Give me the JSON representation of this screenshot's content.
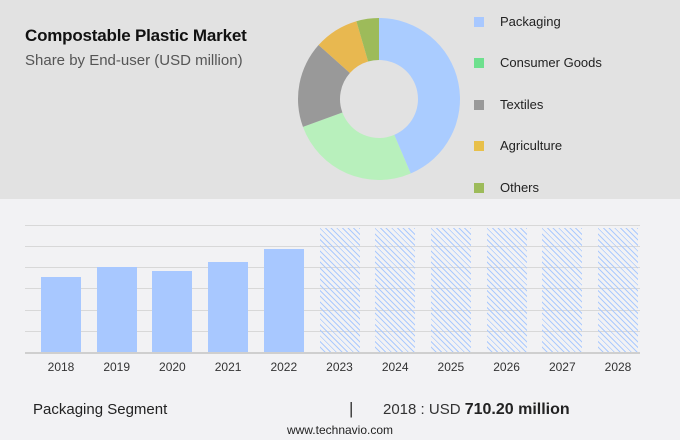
{
  "header": {
    "title": "Compostable Plastic Market",
    "subtitle": "Share by End-user (USD million)"
  },
  "legend": [
    {
      "label": "Packaging",
      "color": "#a8c8ff"
    },
    {
      "label": "Consumer Goods",
      "color": "#6ee08e"
    },
    {
      "label": "Textiles",
      "color": "#999999"
    },
    {
      "label": "Agriculture",
      "color": "#e8c04a"
    },
    {
      "label": "Others",
      "color": "#9dbb5a"
    }
  ],
  "footer": {
    "segment": "Packaging Segment",
    "separator": "|",
    "year_prefix": "2018 : USD ",
    "value": "710.20 million",
    "url": "www.technavio.com"
  },
  "chart_data": [
    {
      "type": "pie",
      "title": "Compostable Plastic Market",
      "subtitle": "Share by End-user (USD million)",
      "donut": true,
      "categories": [
        "Packaging",
        "Consumer Goods",
        "Textiles",
        "Agriculture",
        "Others"
      ],
      "values": [
        43.6,
        25.8,
        17.2,
        8.9,
        4.5
      ],
      "colors": [
        "#aaccff",
        "#b8f0bc",
        "#999999",
        "#e8b850",
        "#9dbb5a"
      ],
      "legend_position": "right"
    },
    {
      "type": "bar",
      "title": "Packaging Segment",
      "categories": [
        "2018",
        "2019",
        "2020",
        "2021",
        "2022",
        "2023",
        "2024",
        "2025",
        "2026",
        "2027",
        "2028"
      ],
      "values": [
        710.2,
        805,
        767,
        852,
        975,
        null,
        null,
        null,
        null,
        null,
        null
      ],
      "forecast_categories": [
        "2023",
        "2024",
        "2025",
        "2026",
        "2027",
        "2028"
      ],
      "xlabel": "",
      "ylabel": "",
      "grid": true,
      "annotation": "2018 : USD 710.20 million"
    }
  ]
}
